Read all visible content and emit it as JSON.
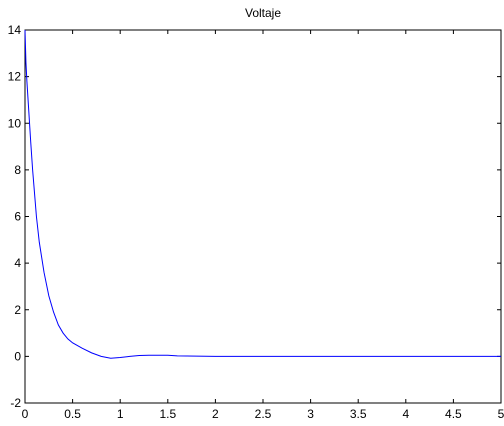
{
  "chart_data": {
    "type": "line",
    "title": "Voltaje",
    "xlabel": "",
    "ylabel": "",
    "xlim": [
      0,
      5
    ],
    "ylim": [
      -2,
      14
    ],
    "xticks": [
      0,
      0.5,
      1,
      1.5,
      2,
      2.5,
      3,
      3.5,
      4,
      4.5,
      5
    ],
    "xtick_labels": [
      "0",
      "0.5",
      "1",
      "1.5",
      "2",
      "2.5",
      "3",
      "3.5",
      "4",
      "4.5",
      "5"
    ],
    "yticks": [
      -2,
      0,
      2,
      4,
      6,
      8,
      10,
      12,
      14
    ],
    "ytick_labels": [
      "-2",
      "0",
      "2",
      "4",
      "6",
      "8",
      "10",
      "12",
      "14"
    ],
    "grid": false,
    "colors": {
      "line": "#0000ff",
      "axes": "#000000",
      "background": "#ffffff"
    },
    "series": [
      {
        "x": [
          0,
          0.01,
          0.02,
          0.04,
          0.06,
          0.08,
          0.1,
          0.12,
          0.15,
          0.2,
          0.25,
          0.3,
          0.35,
          0.4,
          0.45,
          0.5,
          0.6,
          0.7,
          0.8,
          0.9,
          1.0,
          1.1,
          1.2,
          1.3,
          1.5,
          1.6,
          2,
          2.5,
          3,
          3.5,
          4,
          4.5,
          5
        ],
        "y": [
          14,
          12.6,
          11.8,
          10.5,
          9.2,
          8.0,
          7.0,
          6.0,
          4.9,
          3.6,
          2.6,
          1.9,
          1.35,
          1.0,
          0.75,
          0.58,
          0.35,
          0.15,
          0.0,
          -0.08,
          -0.05,
          0.0,
          0.04,
          0.05,
          0.05,
          0.02,
          0.0,
          0.0,
          0.0,
          0.0,
          0.0,
          0.0,
          0.0
        ]
      }
    ]
  }
}
